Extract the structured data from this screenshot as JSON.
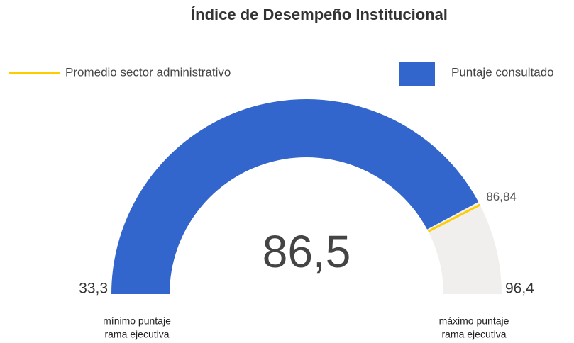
{
  "chart_data": {
    "type": "gauge",
    "title": "Índice de Desempeño Institucional",
    "ylim": [
      33.3,
      96.4
    ],
    "yticks": [
      {
        "value": 33.3,
        "label": "33,3"
      },
      {
        "value": 96.4,
        "label": "96,4"
      }
    ],
    "track_color": "#f0efed",
    "series": [
      {
        "name": "Promedio sector administrativo",
        "color": "#ffcc00",
        "values": [
          86.84
        ],
        "value_labels": [
          "86,84"
        ]
      },
      {
        "name": "Puntaje consultado",
        "color": "#3366cc",
        "values": [
          86.5
        ],
        "value_labels": [
          "86,5"
        ]
      }
    ],
    "annotations": {
      "min": [
        "mínimo puntaje",
        "rama ejecutiva"
      ],
      "max": [
        "máximo puntaje",
        "rama ejecutiva"
      ]
    }
  }
}
